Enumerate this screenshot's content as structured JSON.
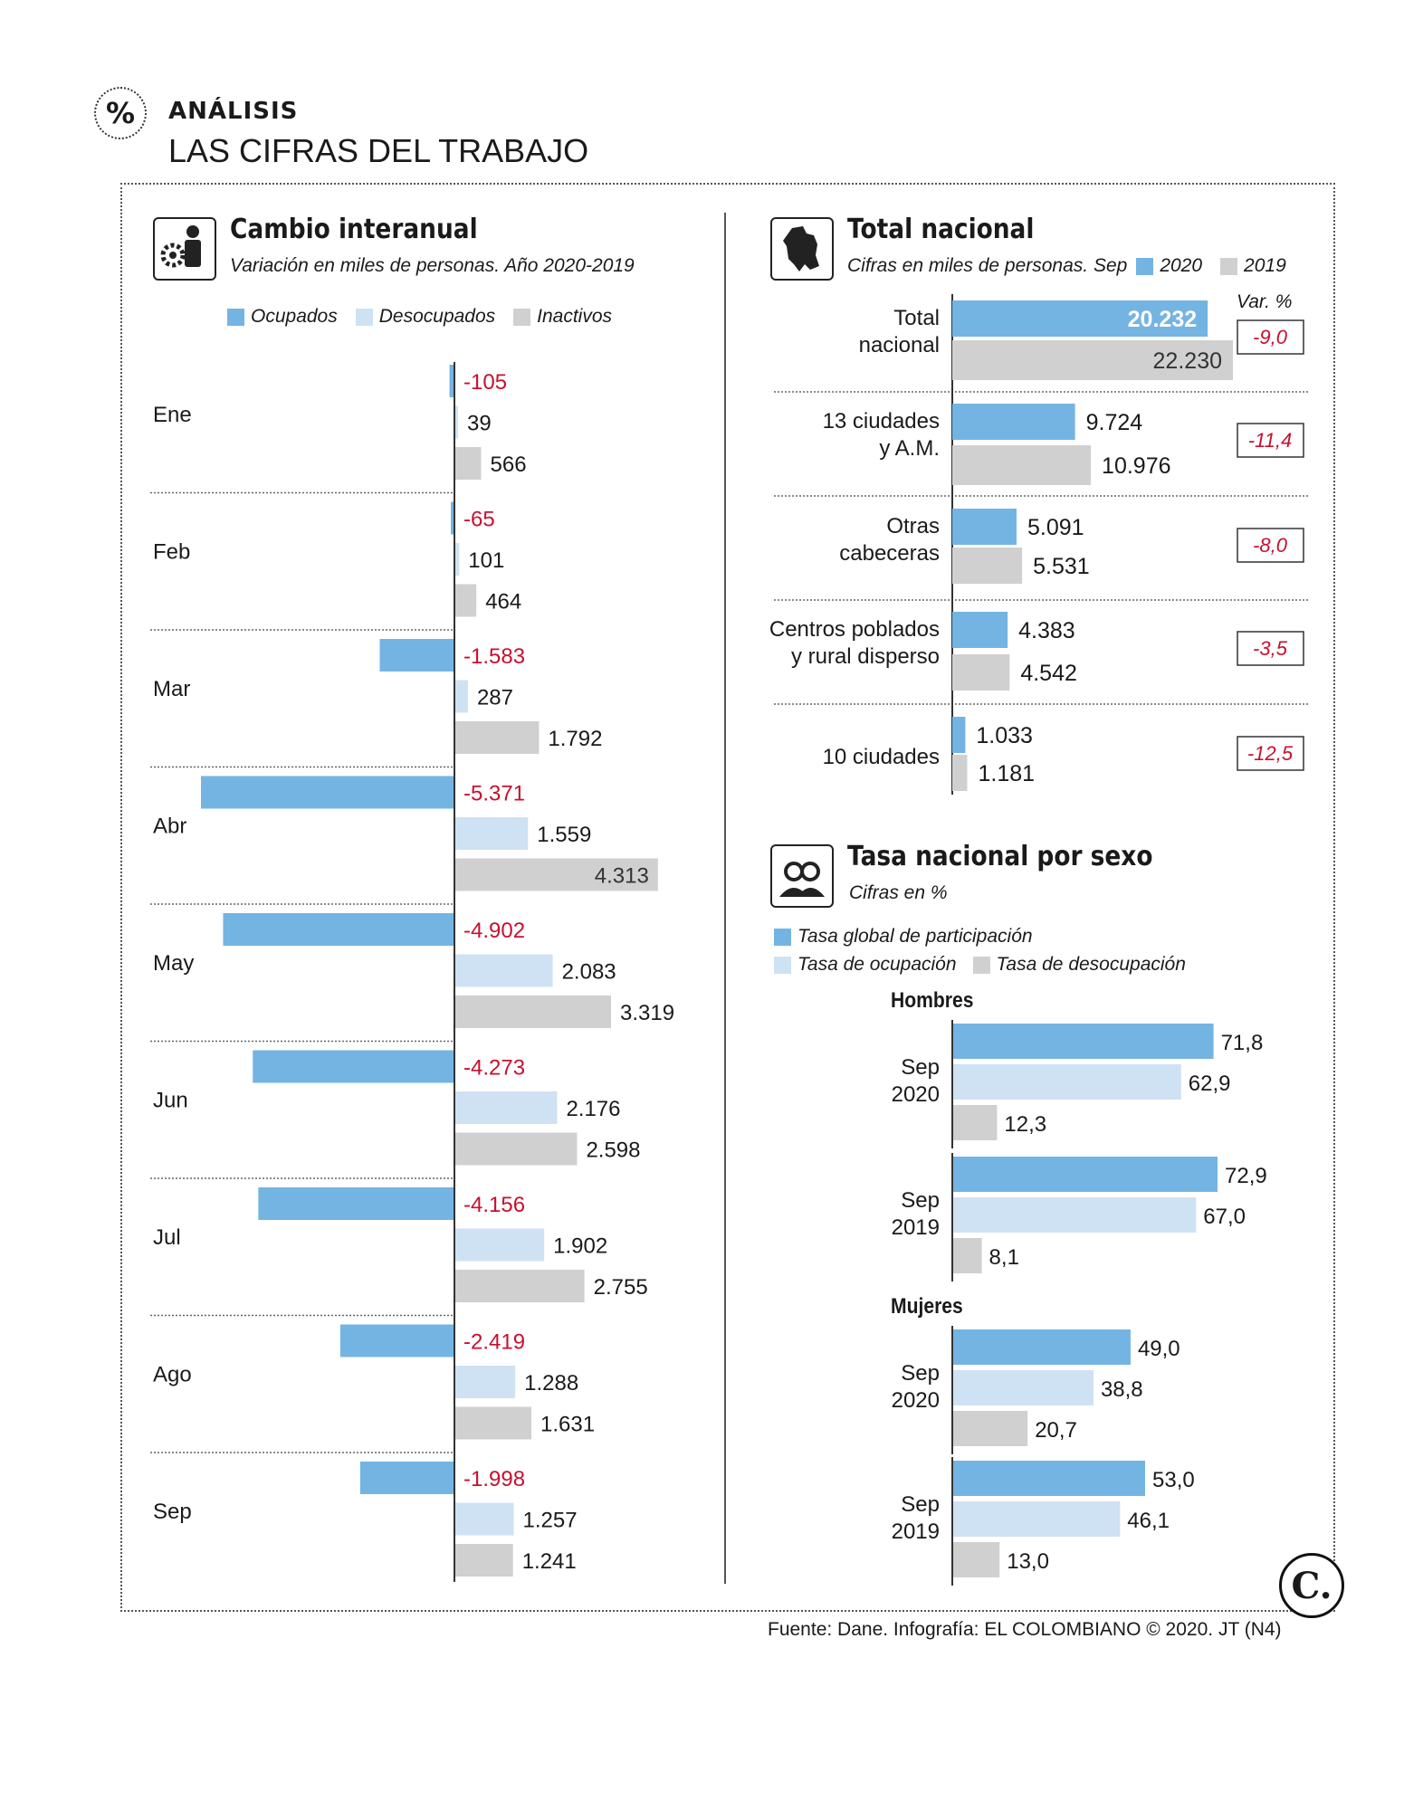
{
  "header": {
    "kicker": "ANÁLISIS",
    "title": "LAS CIFRAS DEL TRABAJO",
    "badge": "%"
  },
  "colors": {
    "blue": "#74b4e3",
    "light_blue": "#cfe2f4",
    "gray": "#d0d0d0",
    "red": "#c8102e"
  },
  "left": {
    "title": "Cambio interanual",
    "subtitle": "Variación en miles de personas. Año 2020-2019",
    "legend": [
      "Ocupados",
      "Desocupados",
      "Inactivos"
    ]
  },
  "right_top": {
    "title": "Total nacional",
    "subtitle": "Cifras en miles de personas. Sep",
    "legend": [
      "2020",
      "2019"
    ],
    "var_header": "Var. %"
  },
  "right_bottom": {
    "title": "Tasa nacional por sexo",
    "subtitle": "Cifras en %",
    "legend": [
      "Tasa global de participación",
      "Tasa de ocupación",
      "Tasa de desocupación"
    ]
  },
  "footer": "Fuente: Dane. Infografía: EL COLOMBIANO © 2020. JT (N4)",
  "logo": "C.",
  "chart_data": [
    {
      "type": "bar",
      "title": "Cambio interanual",
      "orientation": "horizontal",
      "categories": [
        "Ene",
        "Feb",
        "Mar",
        "Abr",
        "May",
        "Jun",
        "Jul",
        "Ago",
        "Sep"
      ],
      "series": [
        {
          "name": "Ocupados",
          "values": [
            -105,
            -65,
            -1583,
            -5371,
            -4902,
            -4273,
            -4156,
            -2419,
            -1998
          ],
          "labels": [
            "-105",
            "-65",
            "-1.583",
            "-5.371",
            "-4.902",
            "-4.273",
            "-4.156",
            "-2.419",
            "-1.998"
          ]
        },
        {
          "name": "Desocupados",
          "values": [
            39,
            101,
            287,
            1559,
            2083,
            2176,
            1902,
            1288,
            1257
          ],
          "labels": [
            "39",
            "101",
            "287",
            "1.559",
            "2.083",
            "2.176",
            "1.902",
            "1.288",
            "1.257"
          ]
        },
        {
          "name": "Inactivos",
          "values": [
            566,
            464,
            1792,
            4313,
            3319,
            2598,
            2755,
            1631,
            1241
          ],
          "labels": [
            "566",
            "464",
            "1.792",
            "4.313",
            "3.319",
            "2.598",
            "2.755",
            "1.631",
            "1.241"
          ]
        }
      ]
    },
    {
      "type": "bar",
      "title": "Total nacional",
      "orientation": "horizontal",
      "categories": [
        "Total nacional",
        "13 ciudades y A.M.",
        "Otras cabeceras",
        "Centros poblados y rural disperso",
        "10 ciudades"
      ],
      "category_lines": [
        [
          "Total",
          "nacional"
        ],
        [
          "13 ciudades",
          "y A.M."
        ],
        [
          "Otras",
          "cabeceras"
        ],
        [
          "Centros poblados",
          "y rural disperso"
        ],
        [
          "10 ciudades"
        ]
      ],
      "series": [
        {
          "name": "2020",
          "values": [
            20232,
            9724,
            5091,
            4383,
            1033
          ],
          "labels": [
            "20.232",
            "9.724",
            "5.091",
            "4.383",
            "1.033"
          ]
        },
        {
          "name": "2019",
          "values": [
            22230,
            10976,
            5531,
            4542,
            1181
          ],
          "labels": [
            "22.230",
            "10.976",
            "5.531",
            "4.542",
            "1.181"
          ]
        }
      ],
      "var_pct": [
        "-9,0",
        "-11,4",
        "-8,0",
        "-3,5",
        "-12,5"
      ]
    },
    {
      "type": "bar",
      "title": "Tasa nacional por sexo",
      "orientation": "horizontal",
      "groups": [
        {
          "name": "Hombres",
          "periods": [
            {
              "label": [
                "Sep",
                "2020"
              ],
              "values": [
                71.8,
                62.9,
                12.3
              ],
              "labels": [
                "71,8",
                "62,9",
                "12,3"
              ]
            },
            {
              "label": [
                "Sep",
                "2019"
              ],
              "values": [
                72.9,
                67.0,
                8.1
              ],
              "labels": [
                "72,9",
                "67,0",
                "8,1"
              ]
            }
          ]
        },
        {
          "name": "Mujeres",
          "periods": [
            {
              "label": [
                "Sep",
                "2020"
              ],
              "values": [
                49.0,
                38.8,
                20.7
              ],
              "labels": [
                "49,0",
                "38,8",
                "20,7"
              ]
            },
            {
              "label": [
                "Sep",
                "2019"
              ],
              "values": [
                53.0,
                46.1,
                13.0
              ],
              "labels": [
                "53,0",
                "46,1",
                "13,0"
              ]
            }
          ]
        }
      ],
      "series_names": [
        "Tasa global de participación",
        "Tasa de ocupación",
        "Tasa de desocupación"
      ]
    }
  ]
}
